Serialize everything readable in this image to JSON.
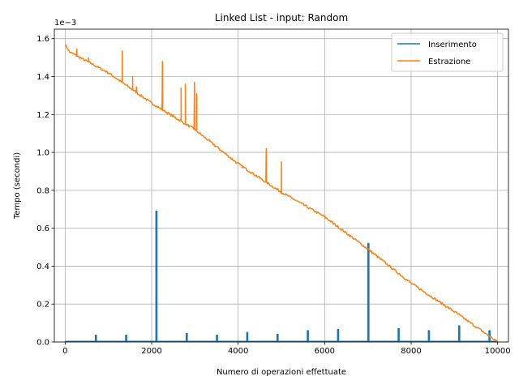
{
  "chart_data": {
    "type": "line",
    "title": "Linked List - input: Random",
    "xlabel": "Numero di operazioni effettuate",
    "ylabel": "Tempo (secondi)",
    "y_offset_label": "1e−3",
    "xlim": [
      -250,
      10250
    ],
    "ylim": [
      0,
      1.65
    ],
    "xticks": [
      0,
      2000,
      4000,
      6000,
      8000,
      10000
    ],
    "xtick_labels": [
      "0",
      "2000",
      "4000",
      "6000",
      "8000",
      "10000"
    ],
    "yticks": [
      0.0,
      0.2,
      0.4,
      0.6,
      0.8,
      1.0,
      1.2,
      1.4,
      1.6
    ],
    "ytick_labels": [
      "0.0",
      "0.2",
      "0.4",
      "0.6",
      "0.8",
      "1.0",
      "1.2",
      "1.4",
      "1.6"
    ],
    "grid": true,
    "legend_position": "top-right",
    "series": [
      {
        "name": "Inserimento",
        "color": "#1f77b4",
        "baseline": 0.003,
        "spikes": [
          {
            "x": 700,
            "y": 0.035
          },
          {
            "x": 1400,
            "y": 0.035
          },
          {
            "x": 2100,
            "y": 0.69
          },
          {
            "x": 2800,
            "y": 0.045
          },
          {
            "x": 3500,
            "y": 0.035
          },
          {
            "x": 4200,
            "y": 0.05
          },
          {
            "x": 4900,
            "y": 0.04
          },
          {
            "x": 5600,
            "y": 0.06
          },
          {
            "x": 6300,
            "y": 0.065
          },
          {
            "x": 7000,
            "y": 0.52
          },
          {
            "x": 7700,
            "y": 0.07
          },
          {
            "x": 8400,
            "y": 0.06
          },
          {
            "x": 9100,
            "y": 0.085
          },
          {
            "x": 9800,
            "y": 0.06
          }
        ]
      },
      {
        "name": "Estrazione",
        "color": "#ff7f0e",
        "trend": [
          {
            "x": 0,
            "y": 1.57
          },
          {
            "x": 100,
            "y": 1.53
          },
          {
            "x": 1000,
            "y": 1.42
          },
          {
            "x": 2000,
            "y": 1.26
          },
          {
            "x": 3000,
            "y": 1.12
          },
          {
            "x": 4000,
            "y": 0.94
          },
          {
            "x": 5000,
            "y": 0.79
          },
          {
            "x": 6000,
            "y": 0.66
          },
          {
            "x": 7000,
            "y": 0.49
          },
          {
            "x": 8000,
            "y": 0.31
          },
          {
            "x": 9000,
            "y": 0.16
          },
          {
            "x": 10000,
            "y": 0.0
          }
        ],
        "spikes": [
          {
            "x": 270,
            "y": 1.545
          },
          {
            "x": 540,
            "y": 1.5
          },
          {
            "x": 1320,
            "y": 1.535
          },
          {
            "x": 1560,
            "y": 1.4
          },
          {
            "x": 1650,
            "y": 1.345
          },
          {
            "x": 2250,
            "y": 1.48
          },
          {
            "x": 2680,
            "y": 1.34
          },
          {
            "x": 2780,
            "y": 1.36
          },
          {
            "x": 2990,
            "y": 1.37
          },
          {
            "x": 3040,
            "y": 1.31
          },
          {
            "x": 4650,
            "y": 1.02
          },
          {
            "x": 5000,
            "y": 0.95
          },
          {
            "x": 6200,
            "y": 0.62
          }
        ]
      }
    ]
  }
}
